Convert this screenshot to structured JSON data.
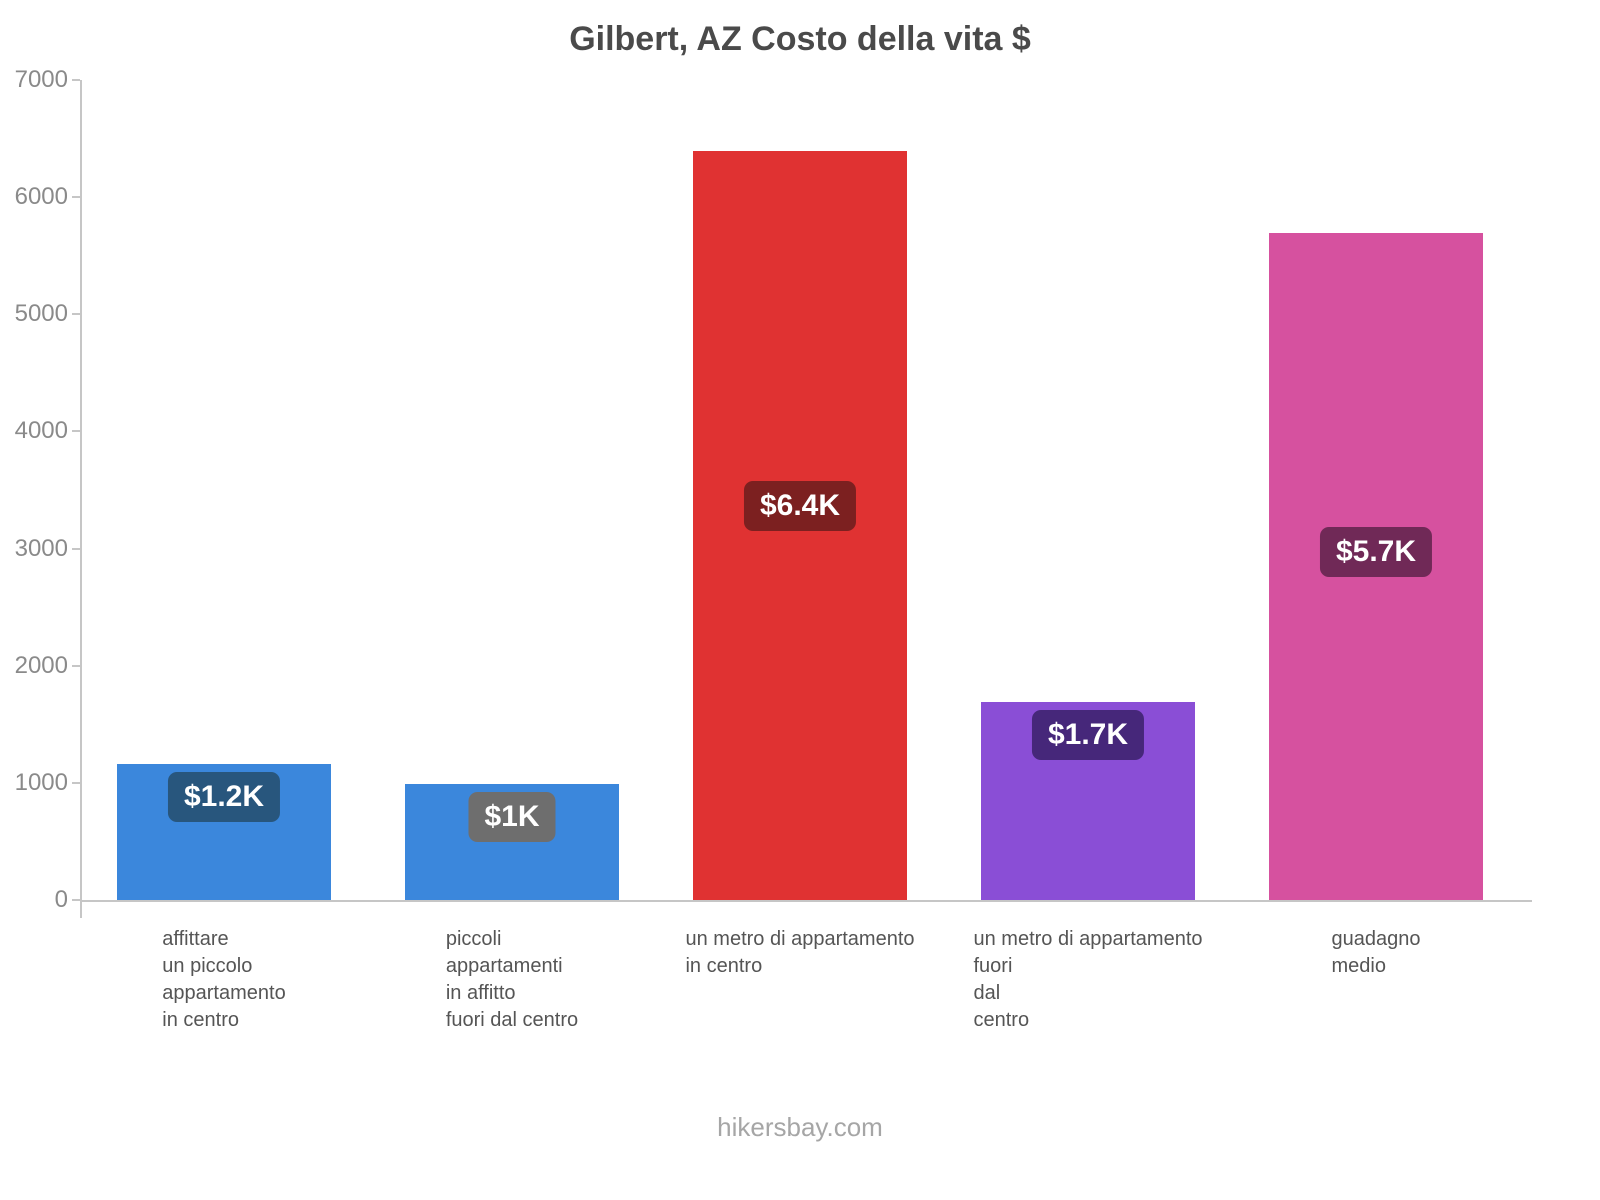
{
  "title": "Gilbert, AZ Costo della vita $",
  "footer": "hikersbay.com",
  "chart_data": {
    "type": "bar",
    "title": "Gilbert, AZ Costo della vita $",
    "xlabel": "",
    "ylabel": "",
    "ylim": [
      0,
      7000
    ],
    "yticks": [
      0,
      1000,
      2000,
      3000,
      4000,
      5000,
      6000,
      7000
    ],
    "grid": false,
    "legend": false,
    "categories": [
      [
        "affittare",
        "un piccolo",
        "appartamento",
        "in centro"
      ],
      [
        "piccoli",
        "appartamenti",
        "in affitto",
        "fuori dal centro"
      ],
      [
        "un metro di appartamento",
        "in centro"
      ],
      [
        "un metro di appartamento",
        "fuori",
        "dal",
        "centro"
      ],
      [
        "guadagno",
        "medio"
      ]
    ],
    "values": [
      1160,
      990,
      6390,
      1690,
      5690
    ],
    "value_labels": [
      "$1.2K",
      "$1K",
      "$6.4K",
      "$1.7K",
      "$5.7K"
    ],
    "bar_colors": [
      "#3b87dc",
      "#3b87dc",
      "#e03232",
      "#8a4ed6",
      "#d6519f"
    ],
    "label_bg_colors": [
      "#28567d",
      "#6e6e6e",
      "#7c2020",
      "#46277a",
      "#702957"
    ]
  }
}
